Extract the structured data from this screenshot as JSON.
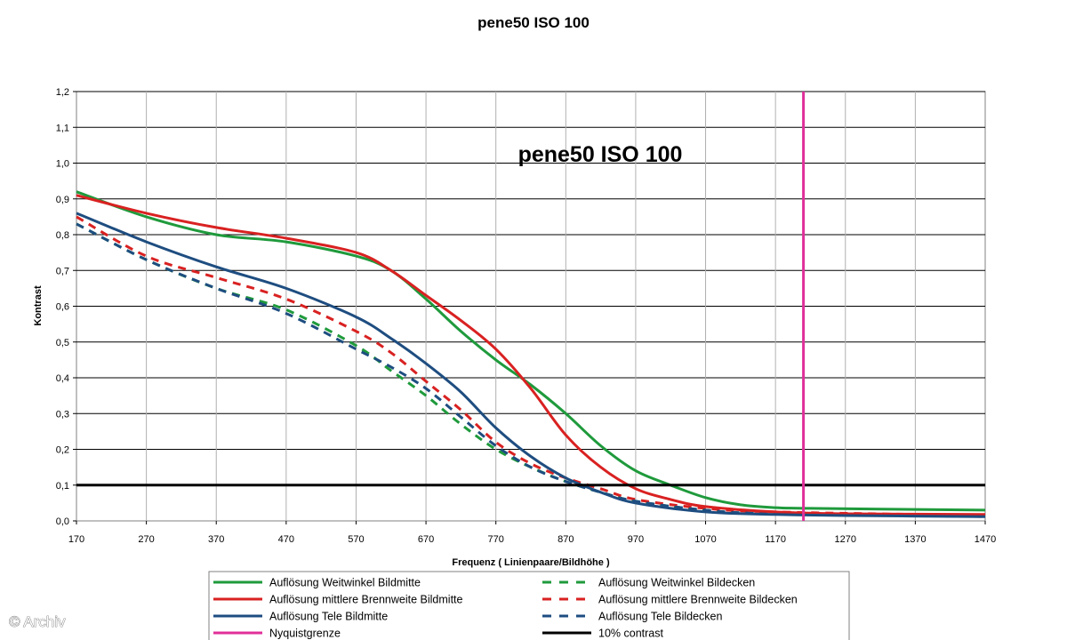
{
  "chart_data": {
    "type": "line",
    "title": "pene50 ISO 100",
    "inner_title": "pene50 ISO 100",
    "xlabel": "Frequenz ( Linienpaare/Bildhöhe )",
    "ylabel": "Kontrast",
    "xlim": [
      170,
      1470
    ],
    "ylim": [
      0,
      1.2
    ],
    "xticks": [
      170,
      270,
      370,
      470,
      570,
      670,
      770,
      870,
      970,
      1070,
      1170,
      1270,
      1370,
      1470
    ],
    "xtick_labels": [
      "170",
      "270",
      "370",
      "470",
      "570",
      "670",
      "770",
      "870",
      "970",
      "1070",
      "1170",
      "1270",
      "1370",
      "1470"
    ],
    "yticks": [
      0,
      0.1,
      0.2,
      0.3,
      0.4,
      0.5,
      0.6,
      0.7,
      0.8,
      0.9,
      1.0,
      1.1,
      1.2
    ],
    "ytick_labels": [
      "0,0",
      "0,1",
      "0,2",
      "0,3",
      "0,4",
      "0,5",
      "0,6",
      "0,7",
      "0,8",
      "0,9",
      "1,0",
      "1,1",
      "1,2"
    ],
    "grid": "horizontal",
    "legend_position": "bottom",
    "series": [
      {
        "name": "Auflösung Weitwinkel Bildmitte",
        "color": "#1f9a3c",
        "style": "solid",
        "x": [
          170,
          270,
          370,
          470,
          570,
          620,
          670,
          720,
          770,
          820,
          870,
          920,
          970,
          1020,
          1070,
          1120,
          1170,
          1220,
          1320,
          1470
        ],
        "y": [
          0.92,
          0.85,
          0.8,
          0.78,
          0.74,
          0.7,
          0.62,
          0.53,
          0.45,
          0.38,
          0.3,
          0.21,
          0.14,
          0.1,
          0.065,
          0.045,
          0.037,
          0.035,
          0.033,
          0.03
        ]
      },
      {
        "name": "Auflösung mittlere Brennweite Bildmitte",
        "color": "#d92121",
        "style": "solid",
        "x": [
          170,
          270,
          370,
          470,
          570,
          620,
          670,
          720,
          770,
          820,
          870,
          920,
          970,
          1020,
          1070,
          1170,
          1270,
          1470
        ],
        "y": [
          0.91,
          0.86,
          0.82,
          0.79,
          0.75,
          0.7,
          0.63,
          0.56,
          0.48,
          0.37,
          0.24,
          0.15,
          0.09,
          0.06,
          0.04,
          0.025,
          0.02,
          0.018
        ]
      },
      {
        "name": "Auflösung Tele Bildmitte",
        "color": "#1e4d80",
        "style": "solid",
        "x": [
          170,
          270,
          370,
          470,
          570,
          620,
          670,
          720,
          770,
          820,
          870,
          920,
          970,
          1070,
          1170,
          1270,
          1470
        ],
        "y": [
          0.86,
          0.78,
          0.71,
          0.65,
          0.57,
          0.51,
          0.44,
          0.36,
          0.26,
          0.18,
          0.12,
          0.08,
          0.05,
          0.025,
          0.018,
          0.015,
          0.012
        ]
      },
      {
        "name": "Auflösung Weitwinkel Bildecken",
        "color": "#1f9a3c",
        "style": "dashed",
        "x": [
          170,
          270,
          370,
          470,
          570,
          620,
          670,
          720,
          770,
          820,
          870,
          920,
          970,
          1070,
          1170,
          1470
        ],
        "y": [
          0.83,
          0.73,
          0.65,
          0.59,
          0.49,
          0.42,
          0.35,
          0.27,
          0.2,
          0.15,
          0.11,
          0.08,
          0.055,
          0.03,
          0.02,
          0.015
        ]
      },
      {
        "name": "Auflösung mittlere Brennweite Bildecken",
        "color": "#d92121",
        "style": "dashed",
        "x": [
          170,
          270,
          370,
          470,
          570,
          620,
          670,
          720,
          770,
          820,
          870,
          920,
          970,
          1070,
          1170,
          1470
        ],
        "y": [
          0.85,
          0.74,
          0.68,
          0.62,
          0.53,
          0.47,
          0.39,
          0.31,
          0.22,
          0.16,
          0.12,
          0.09,
          0.06,
          0.035,
          0.025,
          0.015
        ]
      },
      {
        "name": "Auflösung Tele Bildecken",
        "color": "#1e4d80",
        "style": "dashed",
        "x": [
          170,
          270,
          370,
          470,
          570,
          620,
          670,
          720,
          770,
          820,
          870,
          920,
          970,
          1070,
          1170,
          1470
        ],
        "y": [
          0.83,
          0.73,
          0.65,
          0.58,
          0.48,
          0.43,
          0.37,
          0.29,
          0.21,
          0.15,
          0.11,
          0.08,
          0.055,
          0.03,
          0.02,
          0.012
        ]
      },
      {
        "name": "Nyquistgrenze",
        "color": "#e0309a",
        "style": "vertical",
        "x_value": 1210
      },
      {
        "name": "10% contrast",
        "color": "#000000",
        "style": "horizontal",
        "y_value": 0.1
      }
    ]
  },
  "watermark": "© Archiv"
}
